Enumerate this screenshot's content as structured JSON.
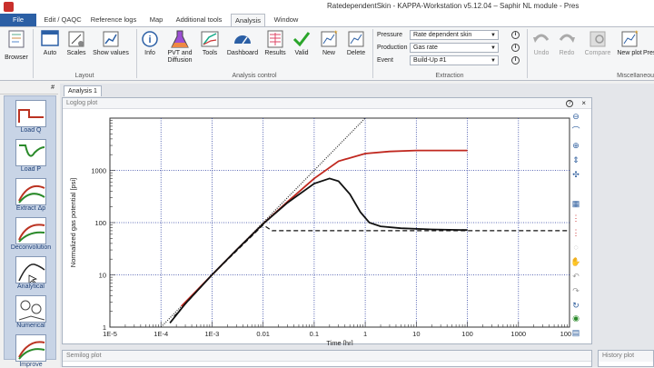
{
  "window": {
    "title": "RatedependentSkin - KAPPA-Workstation v5.12.04 – Saphir NL module - Pres"
  },
  "ribbon_tabs": [
    {
      "label": "File"
    },
    {
      "label": "Edit / QAQC"
    },
    {
      "label": "Reference logs"
    },
    {
      "label": "Map"
    },
    {
      "label": "Additional tools"
    },
    {
      "label": "Analysis"
    },
    {
      "label": "Window"
    }
  ],
  "ribbon": {
    "browser": "Browser",
    "auto": "Auto",
    "scales": "Scales",
    "show_values": "Show values",
    "layout_group": "Layout",
    "info": "Info",
    "pvt": "PVT and",
    "pvt2": "Diffusion",
    "tools": "Tools",
    "dashboard": "Dashboard",
    "results": "Results",
    "valid": "Valid",
    "new": "New",
    "delete": "Delete",
    "analysis_group": "Analysis control",
    "pressure_label": "Pressure",
    "pressure_value": "Rate dependent skin",
    "production_label": "Production",
    "production_value": "Gas rate",
    "event_label": "Event",
    "event_value": "Build-Up #1",
    "extraction_group": "Extraction",
    "undo": "Undo",
    "redo": "Redo",
    "compare": "Compare",
    "new_plot": "New plot",
    "pres": "Pres",
    "misc_group": "Miscellaneou"
  },
  "left_panel": {
    "pin": "#",
    "items": [
      {
        "label": "Load Q"
      },
      {
        "label": "Load P"
      },
      {
        "label": "Extract Δp"
      },
      {
        "label": "Deconvolution"
      },
      {
        "label": "Analytical"
      },
      {
        "label": "Numerical"
      },
      {
        "label": "Improve"
      }
    ]
  },
  "document_tab": "Analysis 1",
  "loglog": {
    "header": "Loglog plot",
    "help": "?"
  },
  "chart_data": {
    "type": "line",
    "title": "",
    "xlabel": "Time [hr]",
    "ylabel": "Normalized gas potential [psi]",
    "xscale": "log",
    "yscale": "log",
    "xlim": [
      1e-05,
      10000
    ],
    "ylim": [
      1,
      10000
    ],
    "x_ticks": [
      "1E-5",
      "1E-4",
      "1E-3",
      "0.01",
      "0.1",
      "1",
      "10",
      "100",
      "1000",
      "10000"
    ],
    "y_ticks": [
      "1",
      "10",
      "100",
      "1000"
    ],
    "series": [
      {
        "color": "#222222",
        "style": "dotted",
        "x": [
          0.0001,
          1
        ],
        "y": [
          1,
          10000
        ]
      },
      {
        "color": "#c0281f",
        "style": "solid",
        "x": [
          0.00025,
          0.001,
          0.003,
          0.01,
          0.03,
          0.1,
          0.3,
          1,
          3,
          10,
          100
        ],
        "y": [
          2.5,
          10,
          30,
          95,
          250,
          700,
          1500,
          2100,
          2300,
          2400,
          2400
        ]
      },
      {
        "color": "#111111",
        "style": "solid",
        "x": [
          0.00015,
          0.0003,
          0.001,
          0.003,
          0.01,
          0.03,
          0.1,
          0.2,
          0.3,
          0.5,
          0.8,
          1.2,
          2,
          5,
          20,
          100
        ],
        "y": [
          1.2,
          2.8,
          10,
          30,
          95,
          240,
          560,
          700,
          620,
          350,
          160,
          100,
          85,
          78,
          74,
          72
        ]
      },
      {
        "color": "#111111",
        "style": "dashed",
        "x": [
          0.00018,
          0.001,
          0.01,
          0.015,
          10000
        ],
        "y": [
          1.6,
          10,
          90,
          70,
          70
        ]
      }
    ]
  },
  "semilog": {
    "header": "Semilog plot"
  },
  "history": {
    "header": "History plot"
  }
}
